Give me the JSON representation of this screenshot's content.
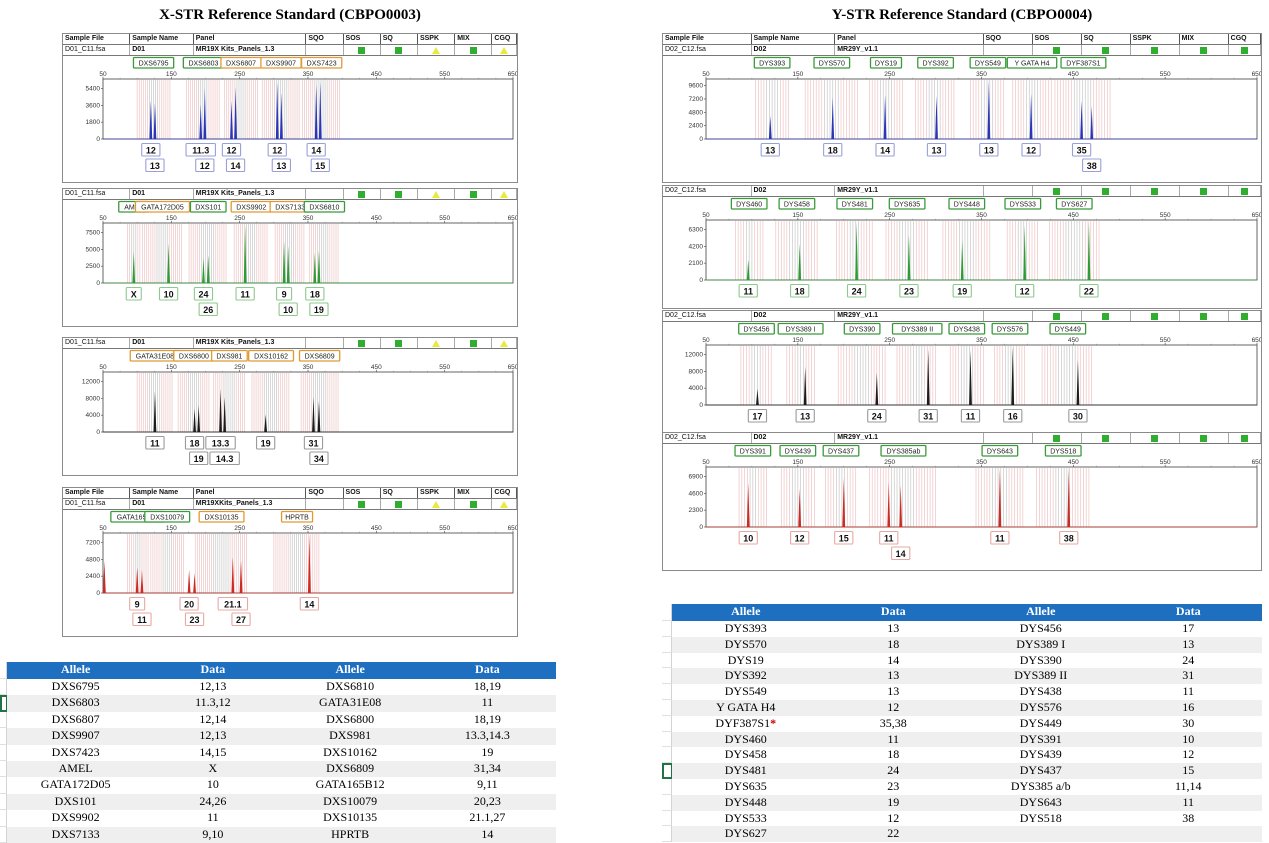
{
  "titles": {
    "left": "X-STR Reference Standard (CBPO0003)",
    "right": "Y-STR Reference Standard (CBPO0004)"
  },
  "info_columns": [
    "Sample File",
    "Sample Name",
    "Panel",
    "SQO",
    "SOS",
    "SQ",
    "SSPK",
    "MIX",
    "CGQ"
  ],
  "flag_columns": [
    "SOS",
    "SQ",
    "SSPK",
    "MIX",
    "CGQ"
  ],
  "colors": {
    "table_header_bg": "#1f6fc0",
    "table_row_alt": "#efefef",
    "green_square": "#2fae2f",
    "yellow_triangle": "#e9e93f",
    "marker_green": "#3a9a3a",
    "marker_orange": "#e09a30",
    "bin_pink": "#eec0c0",
    "bin_gray": "#c4c4c4",
    "excel_green_mark": "#217346"
  },
  "chart_data": [
    {
      "type": "line",
      "subtype": "electropherogram",
      "section": "X-STR",
      "full_header": true,
      "sample_file": "D01_C11.fsa",
      "sample_name": "D01",
      "panel": "MR19X Kits_Panels_1.3",
      "flags": [
        "sq",
        "sq",
        "tri",
        "sq",
        "tri"
      ],
      "dye": "#2a35b8",
      "allele_box_border": "#98a0d8",
      "xlim": [
        50,
        650
      ],
      "x_ticks": [
        50,
        150,
        250,
        350,
        450,
        550,
        650
      ],
      "y_tick_labels": [
        "5400",
        "3600",
        "1800",
        "0"
      ],
      "markers": [
        [
          "DXS6795",
          "g",
          100,
          148
        ],
        [
          "DXS6803",
          "g",
          172,
          222
        ],
        [
          "DXS6807",
          "o",
          228,
          276
        ],
        [
          "DXS9907",
          "o",
          283,
          338
        ],
        [
          "DXS7423",
          "o",
          342,
          398
        ]
      ],
      "peaks": [
        [
          120,
          0.66,
          "12",
          0
        ],
        [
          126,
          0.62,
          "13",
          1
        ],
        [
          193,
          0.6,
          "11.3",
          0
        ],
        [
          199,
          0.88,
          "12",
          1
        ],
        [
          238,
          0.66,
          "12",
          0
        ],
        [
          244,
          0.9,
          "14",
          1
        ],
        [
          305,
          0.98,
          "12",
          0
        ],
        [
          311,
          0.8,
          "13",
          1
        ],
        [
          362,
          0.93,
          "14",
          0
        ],
        [
          368,
          0.98,
          "15",
          1
        ]
      ]
    },
    {
      "type": "line",
      "subtype": "electropherogram",
      "section": "X-STR",
      "full_header": false,
      "sample_file": "D01_C11.fsa",
      "sample_name": "D01",
      "panel": "MR19X Kits_Panels_1.3",
      "flags": [
        "sq",
        "sq",
        "tri",
        "sq",
        "tri"
      ],
      "dye": "#2e9b35",
      "allele_box_border": "#8cc98c",
      "xlim": [
        50,
        650
      ],
      "x_ticks": [
        50,
        150,
        250,
        350,
        450,
        550,
        650
      ],
      "y_tick_labels": [
        "7500",
        "5000",
        "2500",
        "0"
      ],
      "markers": [
        [
          "AMEL",
          "g",
          86,
          104
        ],
        [
          "GATA172D05",
          "o",
          108,
          166
        ],
        [
          "DXS101",
          "g",
          176,
          232
        ],
        [
          "DXS9902",
          "o",
          242,
          292
        ],
        [
          "DXS7133",
          "o",
          302,
          346
        ],
        [
          "DXS6810",
          "g",
          352,
          396
        ]
      ],
      "peaks": [
        [
          95,
          0.55,
          "X",
          0
        ],
        [
          146,
          0.68,
          "10",
          0
        ],
        [
          197,
          0.42,
          "24",
          0
        ],
        [
          204,
          0.48,
          "26",
          1
        ],
        [
          258,
          1,
          "11",
          0
        ],
        [
          315,
          0.72,
          "9",
          0
        ],
        [
          321,
          0.64,
          "10",
          1
        ],
        [
          360,
          0.52,
          "18",
          0
        ],
        [
          366,
          0.56,
          "19",
          1
        ]
      ]
    },
    {
      "type": "line",
      "subtype": "electropherogram",
      "section": "X-STR",
      "full_header": false,
      "sample_file": "D01_C11.fsa",
      "sample_name": "D01",
      "panel": "MR19X Kits_Panels_1.3",
      "flags": [
        "sq",
        "sq",
        "tri",
        "sq",
        "tri"
      ],
      "dye": "#1c1c1c",
      "allele_box_border": "#9a9a9a",
      "xlim": [
        50,
        650
      ],
      "x_ticks": [
        50,
        150,
        250,
        350,
        450,
        550,
        650
      ],
      "y_tick_labels": [
        "12000",
        "8000",
        "4000",
        "0"
      ],
      "markers": [
        [
          "GATA31E08",
          "o",
          100,
          152
        ],
        [
          "DXS6800",
          "o",
          160,
          206
        ],
        [
          "DXS981",
          "o",
          212,
          258
        ],
        [
          "DXS10162",
          "o",
          268,
          324
        ],
        [
          "DXS6809",
          "o",
          340,
          394
        ]
      ],
      "peaks": [
        [
          126,
          0.7,
          "11",
          0
        ],
        [
          184,
          0.4,
          "18",
          0
        ],
        [
          190,
          0.46,
          "19",
          1
        ],
        [
          222,
          0.74,
          "13.3",
          0
        ],
        [
          228,
          0.6,
          "14.3",
          1
        ],
        [
          288,
          0.3,
          "19",
          0
        ],
        [
          358,
          0.6,
          "31",
          0
        ],
        [
          366,
          0.53,
          "34",
          1
        ]
      ]
    },
    {
      "type": "line",
      "subtype": "electropherogram",
      "section": "X-STR",
      "full_header": true,
      "sample_file": "D01_C11.fsa",
      "sample_name": "D01",
      "panel": "MR19XKits_Panels_1.3",
      "flags": [
        "sq",
        "sq",
        "tri",
        "sq",
        "tri"
      ],
      "dye": "#cc2a22",
      "allele_box_border": "#e8a8a2",
      "xlim": [
        50,
        650
      ],
      "x_ticks": [
        50,
        150,
        250,
        350,
        450,
        550,
        650
      ],
      "y_tick_labels": [
        "7200",
        "4800",
        "2400",
        "0"
      ],
      "markers": [
        [
          "GATA165B12",
          "g",
          86,
          116
        ],
        [
          "DXS10079",
          "g",
          120,
          168
        ],
        [
          "DXS10135",
          "o",
          185,
          262
        ],
        [
          "HPRTB",
          "o",
          300,
          368
        ]
      ],
      "peaks": [
        [
          52,
          0.55,
          "",
          0
        ],
        [
          100,
          0.44,
          "9",
          0
        ],
        [
          107,
          0.4,
          "11",
          1
        ],
        [
          176,
          0.4,
          "20",
          0
        ],
        [
          184,
          0.34,
          "23",
          1
        ],
        [
          240,
          0.62,
          "21.1",
          0
        ],
        [
          252,
          0.56,
          "27",
          1
        ],
        [
          352,
          1,
          "14",
          0
        ]
      ]
    },
    {
      "type": "line",
      "subtype": "electropherogram",
      "section": "Y-STR",
      "full_header": true,
      "sample_file": "D02_C12.fsa",
      "sample_name": "D02",
      "panel": "MR29Y_v1.1",
      "flags": [
        "sq",
        "sq",
        "sq",
        "sq",
        "sq"
      ],
      "dye": "#2a35b8",
      "allele_box_border": "#98a0d8",
      "xlim": [
        50,
        650
      ],
      "x_ticks": [
        50,
        150,
        250,
        350,
        450,
        550,
        650
      ],
      "y_tick_labels": [
        "9600",
        "7200",
        "4800",
        "2400",
        "0"
      ],
      "markers": [
        [
          "DYS393",
          "g",
          104,
          140
        ],
        [
          "DYS570",
          "g",
          158,
          216
        ],
        [
          "DYS19",
          "g",
          228,
          264
        ],
        [
          "DYS392",
          "g",
          278,
          322
        ],
        [
          "DYS549",
          "g",
          338,
          376
        ],
        [
          "Y GATA H4",
          "g",
          384,
          426
        ],
        [
          "DYF387S1",
          "g",
          430,
          492
        ]
      ],
      "peaks": [
        [
          120,
          0.4,
          "13",
          0
        ],
        [
          188,
          0.72,
          "18",
          0
        ],
        [
          245,
          0.76,
          "14",
          0
        ],
        [
          301,
          0.74,
          "13",
          0
        ],
        [
          358,
          1,
          "13",
          0
        ],
        [
          404,
          0.78,
          "12",
          0
        ],
        [
          459,
          0.66,
          "35",
          0
        ],
        [
          470,
          0.56,
          "38",
          1
        ]
      ]
    },
    {
      "type": "line",
      "subtype": "electropherogram",
      "section": "Y-STR",
      "full_header": false,
      "sample_file": "D02_C12.fsa",
      "sample_name": "D02",
      "panel": "MR29Y_v1.1",
      "flags": [
        "sq",
        "sq",
        "sq",
        "sq",
        "sq"
      ],
      "dye": "#2e9b35",
      "allele_box_border": "#8cc98c",
      "xlim": [
        50,
        650
      ],
      "x_ticks": [
        50,
        150,
        250,
        350,
        450,
        550,
        650
      ],
      "y_tick_labels": [
        "6300",
        "4200",
        "2100",
        "0"
      ],
      "markers": [
        [
          "DYS460",
          "g",
          82,
          112
        ],
        [
          "DYS458",
          "g",
          126,
          172
        ],
        [
          "DYS481",
          "g",
          192,
          232
        ],
        [
          "DYS635",
          "g",
          246,
          292
        ],
        [
          "DYS448",
          "g",
          308,
          360
        ],
        [
          "DYS533",
          "g",
          378,
          412
        ],
        [
          "DYS627",
          "g",
          424,
          478
        ]
      ],
      "peaks": [
        [
          96,
          0.35,
          "11",
          0
        ],
        [
          152,
          0.62,
          "18",
          0
        ],
        [
          214,
          1,
          "24",
          0
        ],
        [
          271,
          0.78,
          "23",
          0
        ],
        [
          329,
          0.7,
          "19",
          0
        ],
        [
          397,
          0.94,
          "12",
          0
        ],
        [
          467,
          1,
          "22",
          0
        ]
      ]
    },
    {
      "type": "line",
      "subtype": "electropherogram",
      "section": "Y-STR",
      "full_header": false,
      "sample_file": "D02_C12.fsa",
      "sample_name": "D02",
      "panel": "MR29Y_v1.1",
      "flags": [
        "sq",
        "sq",
        "sq",
        "sq",
        "sq"
      ],
      "dye": "#1c1c1c",
      "allele_box_border": "#9a9a9a",
      "xlim": [
        50,
        650
      ],
      "x_ticks": [
        50,
        150,
        250,
        350,
        450,
        550,
        650
      ],
      "y_tick_labels": [
        "12000",
        "8000",
        "4000",
        "0"
      ],
      "markers": [
        [
          "DYS456",
          "g",
          88,
          122
        ],
        [
          "DYS389 I",
          "g",
          138,
          168
        ],
        [
          "DYS390",
          "g",
          194,
          246
        ],
        [
          "DYS389 II",
          "g",
          258,
          302
        ],
        [
          "DYS438",
          "g",
          316,
          352
        ],
        [
          "DYS576",
          "g",
          364,
          398
        ],
        [
          "DYS449",
          "g",
          416,
          472
        ]
      ],
      "peaks": [
        [
          106,
          0.28,
          "17",
          0
        ],
        [
          158,
          0.66,
          "13",
          0
        ],
        [
          236,
          0.56,
          "24",
          0
        ],
        [
          292,
          0.96,
          "31",
          0
        ],
        [
          338,
          0.95,
          "11",
          0
        ],
        [
          384,
          1,
          "16",
          0
        ],
        [
          455,
          0.78,
          "30",
          0
        ]
      ]
    },
    {
      "type": "line",
      "subtype": "electropherogram",
      "section": "Y-STR",
      "full_header": false,
      "sample_file": "D02_C12.fsa",
      "sample_name": "D02",
      "panel": "MR29Y_v1.1",
      "flags": [
        "sq",
        "sq",
        "sq",
        "sq",
        "sq"
      ],
      "dye": "#cc2a22",
      "allele_box_border": "#e8a8a2",
      "xlim": [
        50,
        650
      ],
      "x_ticks": [
        50,
        150,
        250,
        350,
        450,
        550,
        650
      ],
      "y_tick_labels": [
        "6900",
        "4600",
        "2300",
        "0"
      ],
      "markers": [
        [
          "DYS391",
          "g",
          86,
          116
        ],
        [
          "DYS439",
          "g",
          132,
          168
        ],
        [
          "DYS437",
          "g",
          180,
          214
        ],
        [
          "DYS385ab",
          "g",
          228,
          302
        ],
        [
          "DYS643",
          "g",
          344,
          396
        ],
        [
          "DYS518",
          "g",
          410,
          468
        ]
      ],
      "peaks": [
        [
          96,
          0.76,
          "10",
          0
        ],
        [
          152,
          0.66,
          "12",
          0
        ],
        [
          200,
          0.84,
          "15",
          0
        ],
        [
          249,
          0.78,
          "11",
          0
        ],
        [
          262,
          0.72,
          "14",
          1
        ],
        [
          370,
          1,
          "11",
          0
        ],
        [
          445,
          1,
          "38",
          0
        ]
      ]
    },
    {
      "type": "table",
      "section": "X-STR",
      "headers": [
        "Allele",
        "Data",
        "Allele",
        "Data"
      ],
      "green_row": 1,
      "rows": [
        [
          "DXS6795",
          "12,13",
          "DXS6810",
          "18,19"
        ],
        [
          "DXS6803",
          "11.3,12",
          "GATA31E08",
          "11"
        ],
        [
          "DXS6807",
          "12,14",
          "DXS6800",
          "18,19"
        ],
        [
          "DXS9907",
          "12,13",
          "DXS981",
          "13.3,14.3"
        ],
        [
          "DXS7423",
          "14,15",
          "DXS10162",
          "19"
        ],
        [
          "AMEL",
          "X",
          "DXS6809",
          "31,34"
        ],
        [
          "GATA172D05",
          "10",
          "GATA165B12",
          "9,11"
        ],
        [
          "DXS101",
          "24,26",
          "DXS10079",
          "20,23"
        ],
        [
          "DXS9902",
          "11",
          "DXS10135",
          "21.1,27"
        ],
        [
          "DXS7133",
          "9,10",
          "HPRTB",
          "14"
        ]
      ]
    },
    {
      "type": "table",
      "section": "Y-STR",
      "headers": [
        "Allele",
        "Data",
        "Allele",
        "Data"
      ],
      "green_row": 9,
      "rows": [
        [
          "DYS393",
          "13",
          "DYS456",
          "17"
        ],
        [
          "DYS570",
          "18",
          "DYS389 I",
          "13"
        ],
        [
          "DYS19",
          "14",
          "DYS390",
          "24"
        ],
        [
          "DYS392",
          "13",
          "DYS389 II",
          "31"
        ],
        [
          "DYS549",
          "13",
          "DYS438",
          "11"
        ],
        [
          "Y GATA H4",
          "12",
          "DYS576",
          "16"
        ],
        [
          "DYF387S1*",
          "35,38",
          "DYS449",
          "30"
        ],
        [
          "DYS460",
          "11",
          "DYS391",
          "10"
        ],
        [
          "DYS458",
          "18",
          "DYS439",
          "12"
        ],
        [
          "DYS481",
          "24",
          "DYS437",
          "15"
        ],
        [
          "DYS635",
          "23",
          "DYS385 a/b",
          "11,14"
        ],
        [
          "DYS448",
          "19",
          "DYS643",
          "11"
        ],
        [
          "DYS533",
          "12",
          "DYS518",
          "38"
        ],
        [
          "DYS627",
          "22",
          "",
          ""
        ]
      ]
    }
  ]
}
